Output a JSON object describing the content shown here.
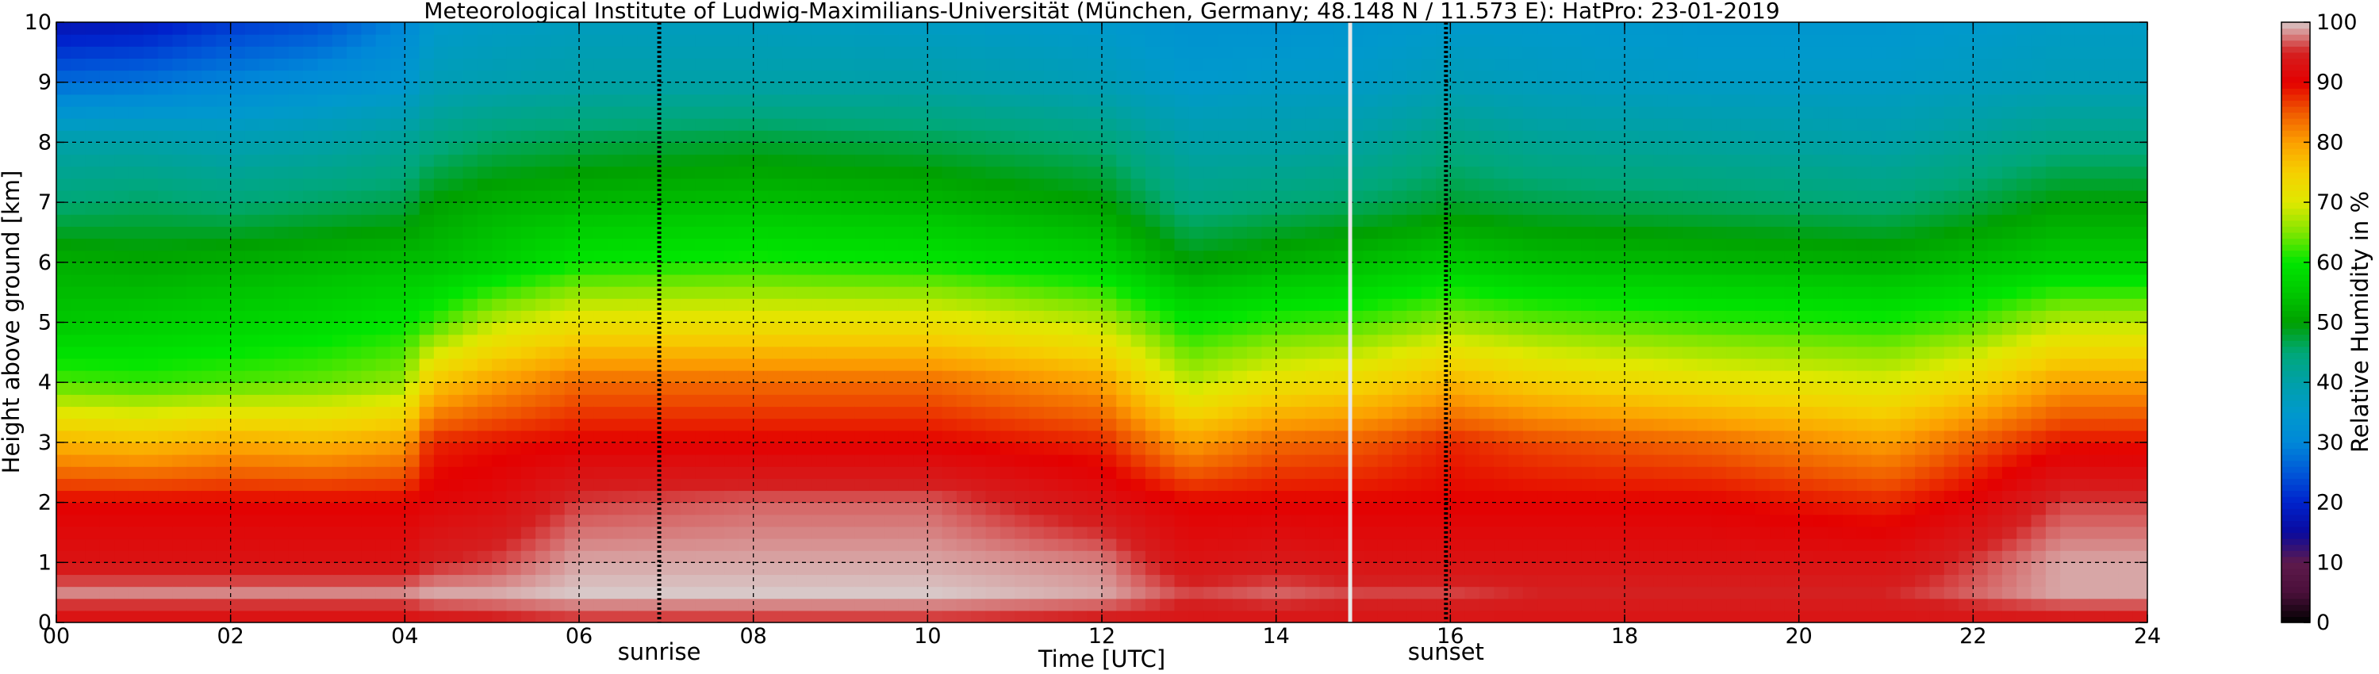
{
  "chart_data": {
    "type": "heatmap",
    "title": "Meteorological Institute of Ludwig-Maximilians-Universität (München, Germany; 48.148 N / 11.573 E):    HatPro: 23-01-2019",
    "xlabel": "Time [UTC]",
    "ylabel": "Height above ground [km]",
    "colorbar_label": "Relative Humidity in %",
    "xlim": [
      0,
      24
    ],
    "ylim": [
      0,
      10
    ],
    "x_ticks": [
      "00",
      "02",
      "04",
      "06",
      "08",
      "10",
      "12",
      "14",
      "16",
      "18",
      "20",
      "22",
      "24"
    ],
    "y_ticks": [
      "0",
      "1",
      "2",
      "3",
      "4",
      "5",
      "6",
      "7",
      "8",
      "9",
      "10"
    ],
    "colorbar_ticks": [
      "0",
      "10",
      "20",
      "30",
      "40",
      "50",
      "60",
      "70",
      "80",
      "90",
      "100"
    ],
    "colorbar_range": [
      0,
      100
    ],
    "grid": true,
    "colormap": [
      {
        "value": 0,
        "color": "#000000"
      },
      {
        "value": 5,
        "color": "#4a0f3a"
      },
      {
        "value": 10,
        "color": "#5e1a4c"
      },
      {
        "value": 15,
        "color": "#0a0a9e"
      },
      {
        "value": 20,
        "color": "#0022cc"
      },
      {
        "value": 25,
        "color": "#0057d8"
      },
      {
        "value": 30,
        "color": "#0088d8"
      },
      {
        "value": 35,
        "color": "#0099cc"
      },
      {
        "value": 40,
        "color": "#00a0a8"
      },
      {
        "value": 45,
        "color": "#00a878"
      },
      {
        "value": 50,
        "color": "#00a000"
      },
      {
        "value": 55,
        "color": "#00c800"
      },
      {
        "value": 60,
        "color": "#00e600"
      },
      {
        "value": 65,
        "color": "#80e600"
      },
      {
        "value": 70,
        "color": "#e0e800"
      },
      {
        "value": 75,
        "color": "#f5d000"
      },
      {
        "value": 80,
        "color": "#fca000"
      },
      {
        "value": 85,
        "color": "#f05a00"
      },
      {
        "value": 90,
        "color": "#e40000"
      },
      {
        "value": 95,
        "color": "#d42020"
      },
      {
        "value": 100,
        "color": "#d8c8c8"
      }
    ],
    "rh_profile_key_heights_km": [
      0,
      0.5,
      1,
      2,
      3,
      4,
      5,
      6,
      7,
      8,
      9,
      10
    ],
    "rh_profiles": [
      {
        "time": 0.0,
        "rh": [
          92,
          98,
          93,
          90,
          78,
          63,
          55,
          52,
          45,
          40,
          27,
          17
        ]
      },
      {
        "time": 1.0,
        "rh": [
          92,
          98,
          93,
          90,
          77,
          62,
          56,
          51,
          46,
          40,
          28,
          18
        ]
      },
      {
        "time": 2.0,
        "rh": [
          92,
          98,
          93,
          90,
          79,
          63,
          57,
          52,
          45,
          39,
          30,
          22
        ]
      },
      {
        "time": 3.0,
        "rh": [
          92,
          98,
          93,
          90,
          78,
          64,
          58,
          53,
          46,
          40,
          32,
          24
        ]
      },
      {
        "time": 4.0,
        "rh": [
          92,
          98,
          93,
          90,
          80,
          66,
          60,
          54,
          47,
          42,
          34,
          30
        ]
      },
      {
        "time": 4.3,
        "rh": [
          93,
          99,
          95,
          91,
          88,
          76,
          62,
          54,
          50,
          44,
          38,
          35
        ]
      },
      {
        "time": 5.0,
        "rh": [
          94,
          99,
          96,
          92,
          89,
          80,
          68,
          56,
          52,
          46,
          39,
          36
        ]
      },
      {
        "time": 6.0,
        "rh": [
          95,
          100,
          99,
          96,
          90,
          84,
          72,
          60,
          53,
          47,
          40,
          37
        ]
      },
      {
        "time": 8.0,
        "rh": [
          95,
          100,
          99,
          97,
          90,
          84,
          72,
          61,
          54,
          48,
          40,
          37
        ]
      },
      {
        "time": 10.0,
        "rh": [
          95,
          100,
          99,
          97,
          90,
          84,
          72,
          60,
          53,
          47,
          40,
          36
        ]
      },
      {
        "time": 12.0,
        "rh": [
          94,
          99,
          98,
          93,
          88,
          80,
          68,
          57,
          50,
          45,
          38,
          35
        ]
      },
      {
        "time": 13.0,
        "rh": [
          93,
          96,
          93,
          90,
          80,
          68,
          60,
          50,
          44,
          40,
          35,
          33
        ]
      },
      {
        "time": 14.0,
        "rh": [
          93,
          97,
          94,
          90,
          84,
          72,
          62,
          52,
          45,
          40,
          36,
          33
        ]
      },
      {
        "time": 15.0,
        "rh": [
          93,
          96,
          93,
          90,
          85,
          74,
          63,
          54,
          46,
          41,
          36,
          34
        ]
      },
      {
        "time": 16.0,
        "rh": [
          93,
          96,
          93,
          90,
          88,
          78,
          66,
          56,
          48,
          44,
          38,
          35
        ]
      },
      {
        "time": 17.0,
        "rh": [
          93,
          95,
          93,
          90,
          86,
          75,
          64,
          54,
          47,
          42,
          37,
          35
        ]
      },
      {
        "time": 19.0,
        "rh": [
          93,
          95,
          93,
          90,
          84,
          72,
          62,
          53,
          46,
          41,
          36,
          34
        ]
      },
      {
        "time": 21.0,
        "rh": [
          93,
          95,
          93,
          88,
          80,
          70,
          61,
          52,
          45,
          40,
          36,
          34
        ]
      },
      {
        "time": 22.0,
        "rh": [
          93,
          97,
          96,
          91,
          85,
          74,
          63,
          54,
          47,
          42,
          37,
          35
        ]
      },
      {
        "time": 23.0,
        "rh": [
          93,
          99,
          99,
          96,
          89,
          80,
          68,
          56,
          50,
          44,
          38,
          36
        ]
      },
      {
        "time": 24.0,
        "rh": [
          93,
          99,
          99,
          96,
          89,
          80,
          68,
          56,
          50,
          44,
          38,
          36
        ]
      }
    ],
    "markers": [
      {
        "time": 6.92,
        "label": "sunrise",
        "style": "dotted",
        "color": "#000000"
      },
      {
        "time": 14.85,
        "label": "",
        "style": "solid",
        "color": "#e8e8e8"
      },
      {
        "time": 15.95,
        "label": "sunset",
        "style": "dotted",
        "color": "#000000"
      }
    ]
  }
}
